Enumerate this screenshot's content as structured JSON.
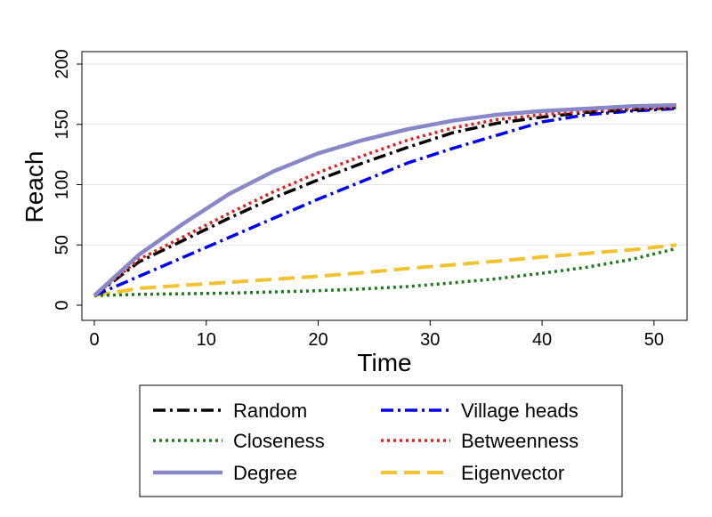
{
  "chart_data": {
    "type": "line",
    "title": "",
    "xlabel": "Time",
    "ylabel": "Reach",
    "xlim": [
      0,
      52
    ],
    "ylim": [
      0,
      200
    ],
    "xticks": [
      "0",
      "10",
      "20",
      "30",
      "40",
      "50"
    ],
    "yticks": [
      "0",
      "50",
      "100",
      "150",
      "200"
    ],
    "grid": "horizontal",
    "legend_position": "bottom",
    "x": [
      0,
      4,
      8,
      12,
      16,
      20,
      24,
      28,
      32,
      36,
      40,
      44,
      48,
      52
    ],
    "series": [
      {
        "name": "Random",
        "color": "#000000",
        "style": "dash-dot",
        "values": [
          8,
          36,
          54,
          72,
          89,
          104,
          118,
          131,
          143,
          151,
          156,
          160,
          162,
          164
        ]
      },
      {
        "name": "Village heads",
        "color": "#0000ee",
        "style": "dash-dot",
        "values": [
          8,
          24,
          40,
          56,
          72,
          88,
          103,
          118,
          130,
          141,
          152,
          158,
          161,
          163
        ]
      },
      {
        "name": "Closeness",
        "color": "#1f7a1f",
        "style": "dotted",
        "values": [
          8,
          9,
          9.5,
          10,
          11,
          12,
          13.5,
          15.5,
          18.5,
          22,
          26.5,
          31.5,
          38,
          47
        ]
      },
      {
        "name": "Betweenness",
        "color": "#e32020",
        "style": "dotted",
        "values": [
          8,
          38,
          57,
          76,
          94,
          110,
          124,
          137,
          147,
          154,
          158,
          161,
          163,
          164
        ]
      },
      {
        "name": "Degree",
        "color": "#8888c8",
        "style": "solid",
        "values": [
          8,
          42,
          68,
          92,
          111,
          126,
          137,
          146,
          153,
          158,
          161,
          163,
          165,
          166
        ]
      },
      {
        "name": "Eigenvector",
        "color": "#f2c230",
        "style": "dashed",
        "values": [
          8,
          14,
          16.5,
          19,
          21.5,
          24,
          27,
          30.5,
          33.5,
          36.5,
          40,
          43,
          46,
          50
        ]
      }
    ]
  }
}
